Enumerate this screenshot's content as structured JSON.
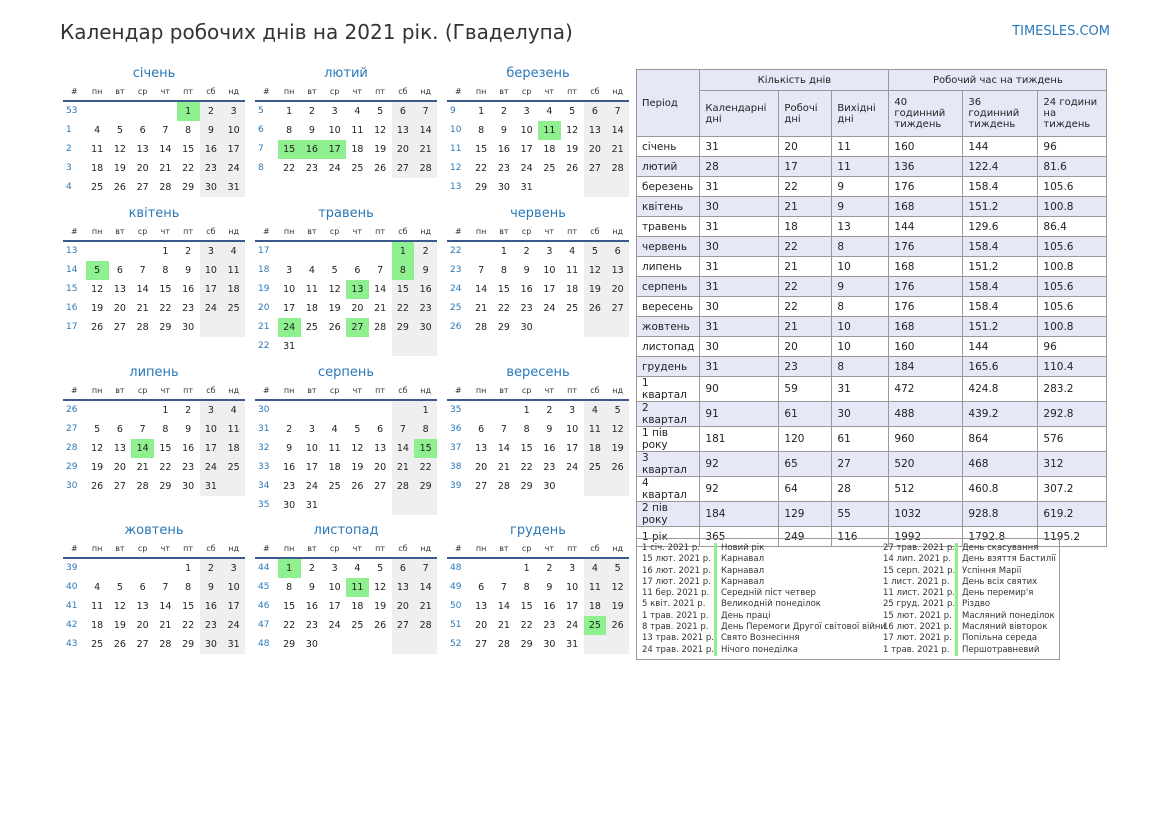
{
  "title": "Календар робочих днів на 2021 рік. (Гваделупа)",
  "site": "TIMESLES.COM",
  "weekday_headers": [
    "#",
    "пн",
    "вт",
    "ср",
    "чт",
    "пт",
    "сб",
    "нд"
  ],
  "months": [
    {
      "name": "січень",
      "offset": 4,
      "days": 31,
      "weeks": [
        53,
        1,
        2,
        3,
        4
      ],
      "holidays": [
        1
      ]
    },
    {
      "name": "лютий",
      "offset": 0,
      "days": 28,
      "weeks": [
        5,
        6,
        7,
        8
      ],
      "holidays": [
        15,
        16,
        17
      ]
    },
    {
      "name": "березень",
      "offset": 0,
      "days": 31,
      "weeks": [
        9,
        10,
        11,
        12,
        13
      ],
      "holidays": [
        11
      ]
    },
    {
      "name": "квітень",
      "offset": 3,
      "days": 30,
      "weeks": [
        13,
        14,
        15,
        16,
        17
      ],
      "holidays": [
        5
      ]
    },
    {
      "name": "травень",
      "offset": 5,
      "days": 31,
      "weeks": [
        17,
        18,
        19,
        20,
        21,
        22
      ],
      "holidays": [
        1,
        8,
        13,
        24,
        27
      ]
    },
    {
      "name": "червень",
      "offset": 1,
      "days": 30,
      "weeks": [
        22,
        23,
        24,
        25,
        26
      ],
      "holidays": []
    },
    {
      "name": "липень",
      "offset": 3,
      "days": 31,
      "weeks": [
        26,
        27,
        28,
        29,
        30
      ],
      "holidays": [
        14
      ]
    },
    {
      "name": "серпень",
      "offset": 6,
      "days": 31,
      "weeks": [
        30,
        31,
        32,
        33,
        34,
        35
      ],
      "holidays": [
        15
      ]
    },
    {
      "name": "вересень",
      "offset": 2,
      "days": 30,
      "weeks": [
        35,
        36,
        37,
        38,
        39
      ],
      "holidays": []
    },
    {
      "name": "жовтень",
      "offset": 4,
      "days": 31,
      "weeks": [
        39,
        40,
        41,
        42,
        43
      ],
      "holidays": []
    },
    {
      "name": "листопад",
      "offset": 0,
      "days": 30,
      "weeks": [
        44,
        45,
        46,
        47,
        48
      ],
      "holidays": [
        1,
        11
      ]
    },
    {
      "name": "грудень",
      "offset": 2,
      "days": 31,
      "weeks": [
        48,
        49,
        50,
        51,
        52
      ],
      "holidays": [
        25
      ]
    }
  ],
  "summary": {
    "period_header": "Період",
    "days_group": "Кількість днів",
    "hours_group": "Робочий час на тиждень",
    "columns": [
      "Календарні дні",
      "Робочі дні",
      "Вихідні дні",
      "40 годинний тиждень",
      "36 годинний тиждень",
      "24 години на тиждень"
    ],
    "rows": [
      [
        "січень",
        "31",
        "20",
        "11",
        "160",
        "144",
        "96"
      ],
      [
        "лютий",
        "28",
        "17",
        "11",
        "136",
        "122.4",
        "81.6"
      ],
      [
        "березень",
        "31",
        "22",
        "9",
        "176",
        "158.4",
        "105.6"
      ],
      [
        "квітень",
        "30",
        "21",
        "9",
        "168",
        "151.2",
        "100.8"
      ],
      [
        "травень",
        "31",
        "18",
        "13",
        "144",
        "129.6",
        "86.4"
      ],
      [
        "червень",
        "30",
        "22",
        "8",
        "176",
        "158.4",
        "105.6"
      ],
      [
        "липень",
        "31",
        "21",
        "10",
        "168",
        "151.2",
        "100.8"
      ],
      [
        "серпень",
        "31",
        "22",
        "9",
        "176",
        "158.4",
        "105.6"
      ],
      [
        "вересень",
        "30",
        "22",
        "8",
        "176",
        "158.4",
        "105.6"
      ],
      [
        "жовтень",
        "31",
        "21",
        "10",
        "168",
        "151.2",
        "100.8"
      ],
      [
        "листопад",
        "30",
        "20",
        "10",
        "160",
        "144",
        "96"
      ],
      [
        "грудень",
        "31",
        "23",
        "8",
        "184",
        "165.6",
        "110.4"
      ],
      [
        "1 квартал",
        "90",
        "59",
        "31",
        "472",
        "424.8",
        "283.2"
      ],
      [
        "2 квартал",
        "91",
        "61",
        "30",
        "488",
        "439.2",
        "292.8"
      ],
      [
        "1 пів року",
        "181",
        "120",
        "61",
        "960",
        "864",
        "576"
      ],
      [
        "3 квартал",
        "92",
        "65",
        "27",
        "520",
        "468",
        "312"
      ],
      [
        "4 квартал",
        "92",
        "64",
        "28",
        "512",
        "460.8",
        "307.2"
      ],
      [
        "2 пів року",
        "184",
        "129",
        "55",
        "1032",
        "928.8",
        "619.2"
      ],
      [
        "1 рік",
        "365",
        "249",
        "116",
        "1992",
        "1792.8",
        "1195.2"
      ]
    ]
  },
  "holidays_list": [
    [
      {
        "date": "1 січ. 2021 р.",
        "name": "Новий рік"
      },
      {
        "date": "15 лют. 2021 р.",
        "name": "Карнавал"
      },
      {
        "date": "16 лют. 2021 р.",
        "name": "Карнавал"
      },
      {
        "date": "17 лют. 2021 р.",
        "name": "Карнавал"
      },
      {
        "date": "11 бер. 2021 р.",
        "name": "Середній піст четвер"
      },
      {
        "date": "5 квіт. 2021 р.",
        "name": "Великодній понеділок"
      },
      {
        "date": "1 трав. 2021 р.",
        "name": "День праці"
      },
      {
        "date": "8 трав. 2021 р.",
        "name": "День Перемоги Другої світової війни"
      },
      {
        "date": "13 трав. 2021 р.",
        "name": "Свято Вознесіння"
      },
      {
        "date": "24 трав. 2021 р.",
        "name": "Нічого понеділка"
      }
    ],
    [
      {
        "date": "27 трав. 2021 р.",
        "name": "День скасування"
      },
      {
        "date": "14 лип. 2021 р.",
        "name": "День взяття Бастилії"
      },
      {
        "date": "15 серп. 2021 р.",
        "name": "Успіння Марії"
      },
      {
        "date": "1 лист. 2021 р.",
        "name": "День всіх святих"
      },
      {
        "date": "11 лист. 2021 р.",
        "name": "День перемир'я"
      },
      {
        "date": "25 груд. 2021 р.",
        "name": "Різдво"
      },
      {
        "date": "15 лют. 2021 р.",
        "name": "Масляний понеділок"
      },
      {
        "date": "16 лют. 2021 р.",
        "name": "Масляний вівторок"
      },
      {
        "date": "17 лют. 2021 р.",
        "name": "Попільна середа"
      },
      {
        "date": "1 трав. 2021 р.",
        "name": "Першотравневий"
      }
    ]
  ]
}
